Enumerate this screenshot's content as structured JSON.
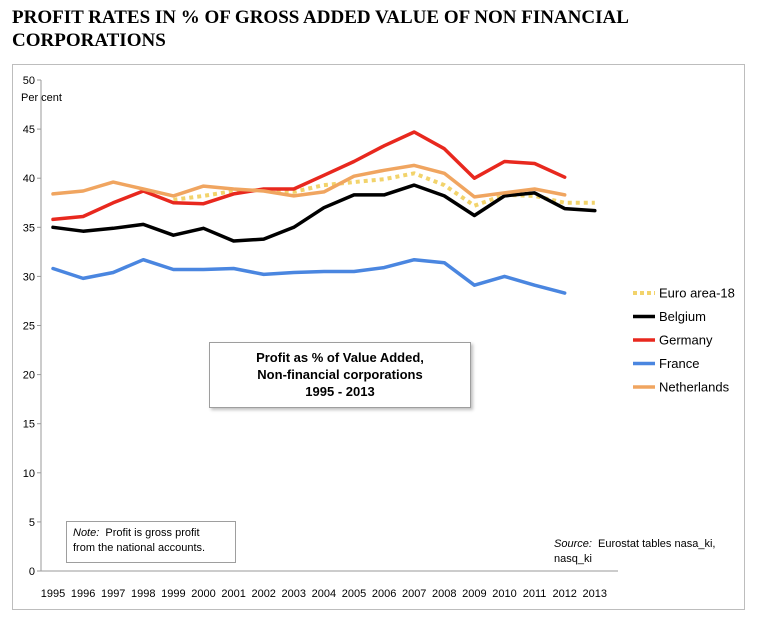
{
  "page": {
    "title_line1": "PROFIT RATES IN % OF GROSS ADDED VALUE OF NON FINANCIAL",
    "title_line2": "CORPORATIONS"
  },
  "annotation": {
    "line1": "Profit as % of Value Added,",
    "line2": "Non-financial corporations",
    "line3": "1995 - 2013"
  },
  "note": {
    "label": "Note:",
    "text_line1": "Profit is gross profit",
    "text_line2": "from the national accounts."
  },
  "source": {
    "label": "Source:",
    "text_line1": "Eurostat tables nasa_ki,",
    "text_line2": "nasq_ki"
  },
  "chart_data": {
    "type": "line",
    "title": "Profit as % of Value Added, Non-financial corporations 1995 - 2013",
    "ylabel": "Per cent",
    "xlabel": "",
    "ylim": [
      0,
      50
    ],
    "yticks": [
      0,
      5,
      10,
      15,
      20,
      25,
      30,
      35,
      40,
      45,
      50
    ],
    "grid": false,
    "legend_position": "right",
    "categories": [
      "1995",
      "1996",
      "1997",
      "1998",
      "1999",
      "2000",
      "2001",
      "2002",
      "2003",
      "2004",
      "2005",
      "2006",
      "2007",
      "2008",
      "2009",
      "2010",
      "2011",
      "2012",
      "2013"
    ],
    "series": [
      {
        "name": "Euro area-18",
        "color": "#f2d36b",
        "style": "dotted",
        "values": [
          null,
          null,
          null,
          null,
          37.8,
          38.2,
          38.7,
          38.8,
          38.6,
          39.3,
          39.6,
          39.9,
          40.5,
          39.3,
          37.2,
          38.3,
          38.2,
          37.5,
          37.5
        ]
      },
      {
        "name": "Belgium",
        "color": "#000000",
        "style": "solid",
        "values": [
          35.0,
          34.6,
          34.9,
          35.3,
          34.2,
          34.9,
          33.6,
          33.8,
          35.0,
          37.0,
          38.3,
          38.3,
          39.3,
          38.2,
          36.2,
          38.2,
          38.5,
          36.9,
          36.7
        ]
      },
      {
        "name": "Germany",
        "color": "#e8281e",
        "style": "solid",
        "values": [
          35.8,
          36.1,
          37.5,
          38.7,
          37.5,
          37.4,
          38.4,
          38.9,
          38.9,
          40.3,
          41.7,
          43.3,
          44.7,
          43.0,
          40.0,
          41.7,
          41.5,
          40.1,
          null
        ]
      },
      {
        "name": "France",
        "color": "#4a86e0",
        "style": "solid",
        "values": [
          30.8,
          29.8,
          30.4,
          31.7,
          30.7,
          30.7,
          30.8,
          30.2,
          30.4,
          30.5,
          30.5,
          30.9,
          31.7,
          31.4,
          29.1,
          30.0,
          29.1,
          28.3,
          null
        ]
      },
      {
        "name": "Netherlands",
        "color": "#f0a560",
        "style": "solid",
        "values": [
          38.4,
          38.7,
          39.6,
          38.9,
          38.2,
          39.2,
          38.9,
          38.7,
          38.2,
          38.6,
          40.2,
          40.8,
          41.3,
          40.5,
          38.1,
          38.5,
          38.9,
          38.3,
          null
        ]
      }
    ]
  }
}
